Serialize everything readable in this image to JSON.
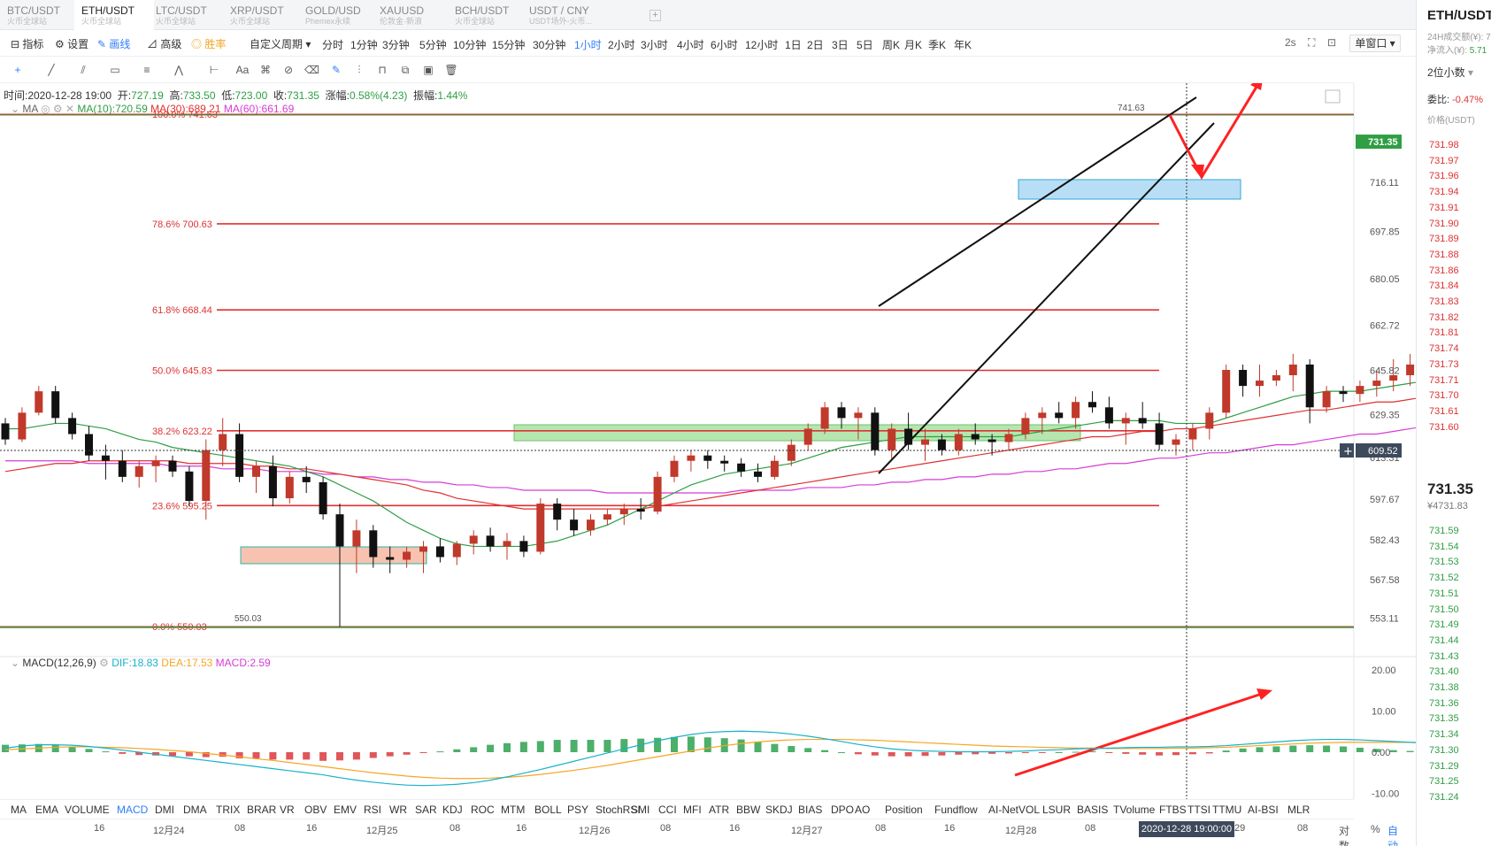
{
  "tabs": [
    {
      "pair": "BTC/USDT",
      "src": "火币全球站"
    },
    {
      "pair": "ETH/USDT",
      "src": "火币全球站"
    },
    {
      "pair": "LTC/USDT",
      "src": "火币全球站"
    },
    {
      "pair": "XRP/USDT",
      "src": "火币全球站"
    },
    {
      "pair": "GOLD/USD",
      "src": "Phemex永续"
    },
    {
      "pair": "XAUUSD",
      "src": "伦敦金·新浪"
    },
    {
      "pair": "BCH/USDT",
      "src": "火币全球站"
    },
    {
      "pair": "USDT / CNY",
      "src": "USDT场外-火币..."
    }
  ],
  "active_tab": 1,
  "toolbar": {
    "indicator": "指标",
    "settings": "设置",
    "draw": "画线",
    "advanced": "高级",
    "winrate": "胜率",
    "custom_period": "自定义周期",
    "periods": [
      "分时",
      "1分钟",
      "3分钟",
      "5分钟",
      "10分钟",
      "15分钟",
      "30分钟",
      "1小时",
      "2小时",
      "3小时",
      "4小时",
      "6小时",
      "12小时",
      "1日",
      "2日",
      "3日",
      "5日",
      "周K",
      "月K",
      "季K",
      "年K"
    ],
    "selected_period": "1小时",
    "refresh": "2s",
    "window": "单窗口"
  },
  "info": {
    "time": "时间:2020-12-28 19:00",
    "open_l": "开:",
    "open": "727.19",
    "high_l": "高:",
    "high": "733.50",
    "low_l": "低:",
    "low": "723.00",
    "close_l": "收:",
    "close": "731.35",
    "chg_l": "涨幅:",
    "chg": "0.58%(4.23)",
    "amp_l": "振幅:",
    "amp": "1.44%"
  },
  "ma": {
    "name": "MA",
    "ma10": "MA(10):720.59",
    "ma30": "MA(30):689.21",
    "ma60": "MA(60):661.69"
  },
  "macd": {
    "name": "MACD(12,26,9)",
    "dif": "DIF:18.83",
    "dea": "DEA:17.53",
    "macd": "MACD:2.59"
  },
  "fib": [
    {
      "label": "100.0% 741.63",
      "v": 741.63
    },
    {
      "label": "78.6% 700.63",
      "v": 700.63
    },
    {
      "label": "61.8% 668.44",
      "v": 668.44
    },
    {
      "label": "50.0% 645.83",
      "v": 645.83
    },
    {
      "label": "38.2% 623.22",
      "v": 623.22
    },
    {
      "label": "23.6% 595.25",
      "v": 595.25
    },
    {
      "label": "0.0% 550.03",
      "v": 550.03
    }
  ],
  "marks": {
    "high": "741.63",
    "low": "550.03"
  },
  "price_axis": [
    {
      "t": "731.84",
      "v": 731.84
    },
    {
      "t": "716.11",
      "v": 716.11
    },
    {
      "t": "697.85",
      "v": 697.85
    },
    {
      "t": "680.05",
      "v": 680.05
    },
    {
      "t": "662.72",
      "v": 662.72
    },
    {
      "t": "645.82",
      "v": 645.82
    },
    {
      "t": "629.35",
      "v": 629.35
    },
    {
      "t": "613.31",
      "v": 613.31
    },
    {
      "t": "597.67",
      "v": 597.67
    },
    {
      "t": "582.43",
      "v": 582.43
    },
    {
      "t": "567.58",
      "v": 567.58
    },
    {
      "t": "553.11",
      "v": 553.11
    }
  ],
  "price_tag": "731.35",
  "cursor_tag": "609.52",
  "macd_axis": [
    {
      "t": "20.00",
      "v": 20
    },
    {
      "t": "10.00",
      "v": 10
    },
    {
      "t": "0.00",
      "v": 0
    },
    {
      "t": "-10.00",
      "v": -10
    }
  ],
  "indicators": [
    "MA",
    "EMA",
    "VOLUME",
    "MACD",
    "DMI",
    "DMA",
    "TRIX",
    "BRAR",
    "VR",
    "OBV",
    "EMV",
    "RSI",
    "WR",
    "SAR",
    "KDJ",
    "ROC",
    "MTM",
    "BOLL",
    "PSY",
    "StochRSI",
    "SMI",
    "CCI",
    "MFI",
    "ATR",
    "BBW",
    "SKDJ",
    "BIAS",
    "DPO",
    "AO",
    "Position",
    "Fundflow",
    "AI-NetVOL",
    "LSUR",
    "BASIS",
    "TVolume",
    "FTBS",
    "TTSI",
    "TTMU",
    "AI-BSI",
    "MLR"
  ],
  "selected_indicator": "MACD",
  "time_axis": [
    "16",
    "12月24",
    "08",
    "16",
    "12月25",
    "08",
    "16",
    "12月26",
    "08",
    "16",
    "12月27",
    "08",
    "16",
    "12月28",
    "08",
    "29",
    "08"
  ],
  "time_cursor": "2020-12-28 19:00:00",
  "bottom_right": {
    "log": "对数",
    "pct": "%",
    "auto": "自动"
  },
  "side": {
    "symbol": "ETH/USDT",
    "vol24": "24H成交额(¥): 7",
    "inflow_l": "净流入(¥): ",
    "inflow": "5.71",
    "decimals": "2位小数",
    "ratio_l": "委比: ",
    "ratio": "-0.47%",
    "price_l": "价格(USDT)",
    "asks": [
      "731.98",
      "731.97",
      "731.96",
      "731.94",
      "731.91",
      "731.90",
      "731.89",
      "731.88",
      "731.86",
      "731.84",
      "731.83",
      "731.82",
      "731.81",
      "731.74",
      "731.73",
      "731.71",
      "731.70",
      "731.61",
      "731.60"
    ],
    "last": "731.35",
    "last_cny": "¥4731.83",
    "bids": [
      "731.59",
      "731.54",
      "731.53",
      "731.52",
      "731.51",
      "731.50",
      "731.49",
      "731.44",
      "731.43",
      "731.40",
      "731.38",
      "731.36",
      "731.35",
      "731.34",
      "731.30",
      "731.29",
      "731.25",
      "731.24"
    ]
  },
  "colors": {
    "up": "#2f9e44",
    "down": "#e03131",
    "fib": "#e03131",
    "ma10": "#2f9e44",
    "ma30": "#e03131",
    "ma60": "#d63bd6",
    "blue": "#2f7df6"
  },
  "chart_data": {
    "type": "candlestick",
    "candles": [
      [
        626,
        628,
        618,
        620
      ],
      [
        620,
        632,
        619,
        630
      ],
      [
        630,
        640,
        629,
        638
      ],
      [
        638,
        640,
        626,
        628
      ],
      [
        628,
        630,
        620,
        622
      ],
      [
        622,
        625,
        612,
        614
      ],
      [
        614,
        618,
        605,
        612
      ],
      [
        612,
        616,
        604,
        606
      ],
      [
        606,
        612,
        602,
        610
      ],
      [
        610,
        614,
        604,
        612
      ],
      [
        612,
        614,
        606,
        608
      ],
      [
        608,
        610,
        595,
        597
      ],
      [
        597,
        620,
        590,
        616
      ],
      [
        616,
        628,
        610,
        622
      ],
      [
        622,
        626,
        604,
        606
      ],
      [
        606,
        612,
        600,
        610
      ],
      [
        610,
        614,
        595,
        598
      ],
      [
        598,
        608,
        596,
        606
      ],
      [
        606,
        610,
        600,
        604
      ],
      [
        604,
        606,
        590,
        592
      ],
      [
        592,
        596,
        550,
        580
      ],
      [
        580,
        590,
        570,
        586
      ],
      [
        586,
        588,
        572,
        576
      ],
      [
        576,
        580,
        570,
        575
      ],
      [
        575,
        580,
        572,
        578
      ],
      [
        578,
        582,
        570,
        580
      ],
      [
        580,
        583,
        574,
        576
      ],
      [
        576,
        582,
        573,
        581
      ],
      [
        581,
        586,
        577,
        584
      ],
      [
        584,
        587,
        578,
        580
      ],
      [
        580,
        585,
        575,
        582
      ],
      [
        582,
        584,
        576,
        578
      ],
      [
        578,
        598,
        577,
        596
      ],
      [
        596,
        598,
        586,
        590
      ],
      [
        590,
        594,
        584,
        586
      ],
      [
        586,
        592,
        584,
        590
      ],
      [
        590,
        594,
        588,
        592
      ],
      [
        592,
        596,
        588,
        594
      ],
      [
        594,
        598,
        590,
        593
      ],
      [
        593,
        608,
        592,
        606
      ],
      [
        606,
        614,
        604,
        612
      ],
      [
        612,
        616,
        608,
        614
      ],
      [
        614,
        616,
        609,
        612
      ],
      [
        612,
        614,
        608,
        611
      ],
      [
        611,
        613,
        606,
        608
      ],
      [
        608,
        611,
        604,
        606
      ],
      [
        606,
        614,
        605,
        612
      ],
      [
        612,
        620,
        610,
        618
      ],
      [
        618,
        626,
        616,
        624
      ],
      [
        624,
        634,
        622,
        632
      ],
      [
        632,
        634,
        624,
        628
      ],
      [
        628,
        632,
        620,
        630
      ],
      [
        630,
        632,
        614,
        616
      ],
      [
        616,
        626,
        612,
        624
      ],
      [
        624,
        630,
        616,
        618
      ],
      [
        618,
        624,
        612,
        620
      ],
      [
        620,
        622,
        614,
        616
      ],
      [
        616,
        624,
        614,
        622
      ],
      [
        622,
        626,
        618,
        620
      ],
      [
        620,
        622,
        614,
        619
      ],
      [
        619,
        624,
        616,
        622
      ],
      [
        622,
        630,
        620,
        628
      ],
      [
        628,
        632,
        622,
        630
      ],
      [
        630,
        634,
        626,
        628
      ],
      [
        628,
        636,
        624,
        634
      ],
      [
        634,
        638,
        630,
        632
      ],
      [
        632,
        636,
        624,
        626
      ],
      [
        626,
        630,
        618,
        628
      ],
      [
        628,
        634,
        624,
        626
      ],
      [
        626,
        630,
        616,
        618
      ],
      [
        618,
        622,
        614,
        620
      ],
      [
        620,
        626,
        616,
        624
      ],
      [
        624,
        632,
        620,
        630
      ],
      [
        630,
        648,
        628,
        646
      ],
      [
        646,
        648,
        636,
        640
      ],
      [
        640,
        648,
        636,
        642
      ],
      [
        642,
        646,
        640,
        644
      ],
      [
        644,
        652,
        638,
        648
      ],
      [
        648,
        650,
        626,
        632
      ],
      [
        632,
        640,
        630,
        638
      ],
      [
        638,
        640,
        634,
        637
      ],
      [
        637,
        642,
        634,
        640
      ],
      [
        640,
        646,
        636,
        642
      ],
      [
        642,
        650,
        638,
        644
      ],
      [
        644,
        652,
        640,
        648
      ],
      [
        648,
        652,
        640,
        646
      ],
      [
        646,
        650,
        638,
        642
      ],
      [
        642,
        648,
        636,
        644
      ],
      [
        644,
        648,
        620,
        630
      ],
      [
        630,
        648,
        628,
        646
      ],
      [
        646,
        690,
        645,
        688
      ],
      [
        688,
        704,
        680,
        700
      ],
      [
        700,
        704,
        688,
        698
      ],
      [
        698,
        702,
        680,
        694
      ],
      [
        694,
        716,
        690,
        712
      ],
      [
        712,
        716,
        674,
        680
      ],
      [
        680,
        690,
        660,
        686
      ],
      [
        686,
        694,
        682,
        690
      ],
      [
        690,
        716,
        688,
        712
      ],
      [
        712,
        716,
        704,
        710
      ],
      [
        710,
        714,
        702,
        706
      ],
      [
        706,
        710,
        700,
        708
      ],
      [
        708,
        712,
        702,
        706
      ],
      [
        706,
        718,
        704,
        716
      ],
      [
        716,
        720,
        708,
        712
      ],
      [
        712,
        734,
        710,
        730
      ],
      [
        730,
        742,
        728,
        740
      ],
      [
        740,
        742,
        726,
        730
      ],
      [
        730,
        736,
        724,
        727
      ],
      [
        727,
        733.5,
        723,
        731.35
      ]
    ],
    "ma10": [
      624,
      624,
      625,
      626,
      626,
      625,
      624,
      622,
      620,
      619,
      617,
      616,
      615,
      614,
      613,
      612,
      611,
      610,
      608,
      606,
      603,
      600,
      597,
      593,
      589,
      586,
      583,
      581,
      580,
      580,
      580,
      580,
      581,
      582,
      584,
      586,
      588,
      591,
      594,
      597,
      600,
      603,
      605,
      607,
      608,
      609,
      610,
      611,
      613,
      615,
      617,
      618,
      619,
      620,
      621,
      621,
      621,
      621,
      621,
      621,
      621,
      622,
      623,
      624,
      625,
      626,
      627,
      627,
      627,
      627,
      626,
      626,
      626,
      628,
      630,
      632,
      634,
      636,
      637,
      638,
      638,
      638,
      639,
      640,
      641,
      642,
      642,
      643,
      643,
      643,
      648,
      654,
      660,
      665,
      671,
      675,
      677,
      680,
      684,
      688,
      692,
      696,
      700,
      703,
      705,
      708,
      710,
      712,
      716,
      720
    ],
    "ma30": [
      608,
      609,
      610,
      611,
      611,
      612,
      612,
      612,
      612,
      612,
      612,
      611,
      611,
      611,
      611,
      610,
      610,
      609,
      609,
      608,
      607,
      606,
      605,
      604,
      603,
      601,
      600,
      598,
      597,
      596,
      595,
      594,
      594,
      594,
      594,
      594,
      594,
      594,
      594,
      595,
      596,
      597,
      598,
      599,
      600,
      601,
      602,
      603,
      604,
      605,
      606,
      607,
      608,
      609,
      610,
      611,
      612,
      613,
      614,
      615,
      616,
      617,
      618,
      619,
      620,
      621,
      621,
      622,
      623,
      623,
      624,
      624,
      625,
      626,
      627,
      628,
      629,
      630,
      631,
      631,
      632,
      633,
      634,
      634,
      635,
      636,
      637,
      638,
      639,
      639,
      641,
      643,
      645,
      647,
      649,
      651,
      653,
      655,
      657,
      659,
      661,
      663,
      665,
      667,
      669,
      672,
      675,
      678,
      683,
      689
    ],
    "ma60": [
      612,
      612,
      612,
      612,
      612,
      611,
      611,
      611,
      611,
      611,
      610,
      610,
      610,
      609,
      609,
      609,
      608,
      608,
      608,
      607,
      607,
      606,
      606,
      605,
      605,
      604,
      604,
      603,
      603,
      602,
      602,
      601,
      601,
      601,
      601,
      601,
      600,
      600,
      600,
      600,
      600,
      600,
      600,
      600,
      601,
      601,
      601,
      601,
      602,
      602,
      602,
      603,
      603,
      604,
      604,
      605,
      605,
      606,
      606,
      607,
      607,
      608,
      608,
      609,
      609,
      610,
      611,
      611,
      612,
      613,
      613,
      614,
      615,
      615,
      616,
      617,
      618,
      618,
      619,
      620,
      621,
      622,
      622,
      623,
      624,
      625,
      626,
      627,
      628,
      629,
      630,
      631,
      633,
      634,
      635,
      637,
      638,
      640,
      641,
      642,
      644,
      645,
      647,
      648,
      650,
      652,
      654,
      656,
      659,
      662
    ],
    "macd_hist": [
      1.8,
      1.9,
      2,
      1.7,
      1.3,
      0.8,
      0.2,
      -0.4,
      -0.7,
      -0.8,
      -0.9,
      -1,
      -1.2,
      -1.1,
      -1.5,
      -1.5,
      -1.8,
      -1.8,
      -1.8,
      -2.1,
      -2,
      -1.8,
      -1.4,
      -1,
      -0.6,
      -0.2,
      0.2,
      0.7,
      1.2,
      1.8,
      2.2,
      2.5,
      2.7,
      3,
      3,
      3,
      3,
      3.2,
      3.3,
      3.5,
      3.7,
      3.8,
      3.6,
      3.4,
      3.1,
      2.6,
      2,
      1.5,
      1,
      0.5,
      0,
      -0.5,
      -0.8,
      -1,
      -1,
      -0.9,
      -0.8,
      -0.6,
      -0.5,
      -0.4,
      -0.3,
      -0.2,
      -0.1,
      0,
      0.1,
      0.2,
      -0.1,
      -0.4,
      -0.6,
      -0.8,
      -0.7,
      -0.5,
      -0.3,
      0.4,
      0.9,
      1.2,
      1.4,
      1.6,
      1.7,
      1.6,
      1.4,
      1.1,
      0.8,
      0.5,
      0.3,
      0,
      -0.3,
      -0.6,
      -0.9,
      -1.2,
      -0.6,
      1.8,
      3.4,
      4.8,
      6,
      6.2,
      5.2,
      4.6,
      4.3,
      3.6,
      3.4,
      3.8,
      4.2,
      4.4,
      4,
      3.6,
      3.2,
      3.6,
      4.4,
      3,
      2.59
    ],
    "dif": [
      1,
      1.5,
      1.8,
      1.8,
      1.7,
      1.4,
      1,
      0.5,
      0,
      -0.5,
      -1,
      -1.5,
      -2,
      -2.5,
      -3,
      -3.5,
      -4,
      -4.5,
      -5,
      -5.5,
      -6.2,
      -6.8,
      -7.3,
      -7.7,
      -8,
      -8.1,
      -8,
      -7.8,
      -7.4,
      -6.8,
      -6,
      -5.1,
      -4.2,
      -3.2,
      -2.2,
      -1.2,
      -0.2,
      0.8,
      1.8,
      2.8,
      3.6,
      4.3,
      4.8,
      5,
      5.1,
      5,
      4.8,
      4.4,
      3.9,
      3.3,
      2.6,
      1.9,
      1.3,
      0.8,
      0.5,
      0.3,
      0.2,
      0.1,
      0.1,
      0.1,
      0.2,
      0.3,
      0.5,
      0.6,
      0.8,
      0.9,
      1,
      1.1,
      1.2,
      1.2,
      1.3,
      1.3,
      1.4,
      1.6,
      1.9,
      2.2,
      2.5,
      2.8,
      3,
      3.1,
      3.1,
      3,
      2.8,
      2.6,
      2.4,
      2.2,
      1.9,
      1.5,
      1.1,
      0.7,
      1,
      3.2,
      6.5,
      9.4,
      11.4,
      12.4,
      12.4,
      12,
      11.8,
      11.3,
      11.5,
      12.3,
      13.2,
      14,
      14.5,
      14.8,
      15.2,
      16.2,
      17.9,
      19.3,
      18.83
    ],
    "dea": [
      0.6,
      0.8,
      1,
      1.2,
      1.3,
      1.3,
      1.2,
      1.1,
      0.9,
      0.7,
      0.4,
      0.1,
      -0.3,
      -0.7,
      -1.1,
      -1.6,
      -2,
      -2.5,
      -3,
      -3.5,
      -4,
      -4.5,
      -5,
      -5.4,
      -5.8,
      -6.1,
      -6.3,
      -6.4,
      -6.4,
      -6.3,
      -6.1,
      -5.8,
      -5.4,
      -4.9,
      -4.4,
      -3.8,
      -3.2,
      -2.5,
      -1.8,
      -1.1,
      -0.4,
      0.3,
      1,
      1.6,
      2.1,
      2.5,
      2.8,
      3,
      3.1,
      3.1,
      3.1,
      3,
      2.9,
      2.7,
      2.5,
      2.3,
      2.1,
      1.9,
      1.7,
      1.5,
      1.4,
      1.3,
      1.2,
      1.1,
      1,
      1,
      0.9,
      0.9,
      0.9,
      0.9,
      1,
      1,
      1.1,
      1.2,
      1.4,
      1.6,
      1.8,
      2,
      2.2,
      2.3,
      2.4,
      2.4,
      2.4,
      2.4,
      2.4,
      2.3,
      2.2,
      2.1,
      1.9,
      1.7,
      1.6,
      1.9,
      2.6,
      3.6,
      4.7,
      5.8,
      6.7,
      7.4,
      8,
      8.5,
      9,
      9.6,
      10.2,
      10.9,
      11.6,
      12.3,
      13,
      13.8,
      14.8,
      16,
      17.53
    ]
  }
}
